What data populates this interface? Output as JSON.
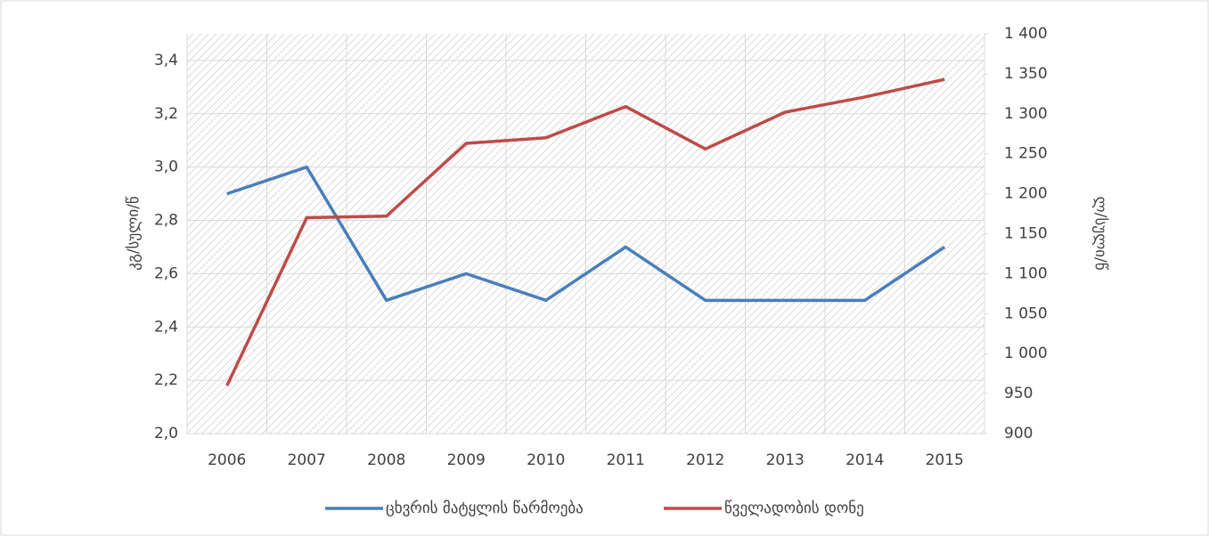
{
  "chart_data": {
    "type": "line",
    "categories": [
      "2006",
      "2007",
      "2008",
      "2009",
      "2010",
      "2011",
      "2012",
      "2013",
      "2014",
      "2015"
    ],
    "series": [
      {
        "name": "ცხვრის მატყლის წარმოება",
        "color": "#4a7ebb",
        "values": [
          2.9,
          3.0,
          2.5,
          2.6,
          2.5,
          2.7,
          2.5,
          2.5,
          2.5,
          2.7
        ]
      },
      {
        "name": "წველადობის დონე",
        "color": "#be4b48",
        "axis": "y2",
        "values": [
          960,
          1170,
          1172,
          1263,
          1270,
          1309,
          1256,
          1302,
          1321,
          1343
        ]
      }
    ],
    "ylabel": "კგ/სული/წ",
    "y2label": "ლ/სული/წ",
    "ylim": [
      2.0,
      3.5
    ],
    "yticks": [
      {
        "value": 2.0,
        "label": "2,0"
      },
      {
        "value": 2.2,
        "label": "2,2"
      },
      {
        "value": 2.4,
        "label": "2,4"
      },
      {
        "value": 2.6,
        "label": "2,6"
      },
      {
        "value": 2.8,
        "label": "2,8"
      },
      {
        "value": 3.0,
        "label": "3,0"
      },
      {
        "value": 3.2,
        "label": "3,2"
      },
      {
        "value": 3.4,
        "label": "3,4"
      }
    ],
    "y2lim": [
      900,
      1400
    ],
    "y2ticks": [
      900,
      950,
      {
        "value": 1000,
        "label": "1 000"
      },
      {
        "value": 1050,
        "label": "1 050"
      },
      {
        "value": 1100,
        "label": "1 100"
      },
      {
        "value": 1150,
        "label": "1 150"
      },
      {
        "value": 1200,
        "label": "1 200"
      },
      {
        "value": 1250,
        "label": "1 250"
      },
      {
        "value": 1300,
        "label": "1 300"
      },
      {
        "value": 1350,
        "label": "1 350"
      },
      {
        "value": 1400,
        "label": "1 400"
      }
    ],
    "grid": true,
    "legend": "bottom"
  }
}
